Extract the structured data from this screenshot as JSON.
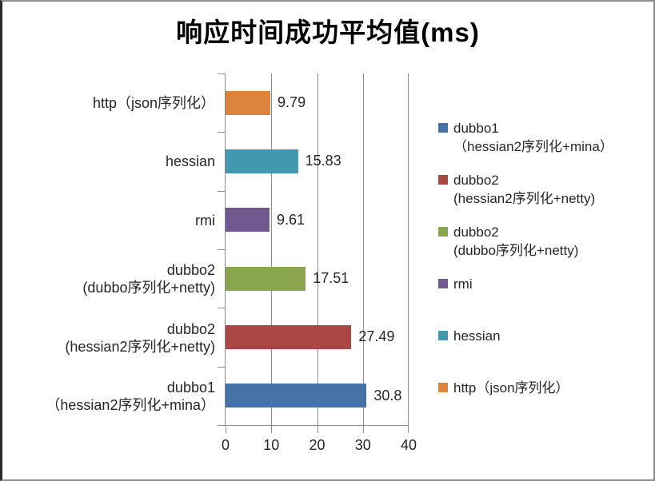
{
  "chart_data": {
    "type": "bar",
    "orientation": "horizontal",
    "title": "响应时间成功平均值(ms)",
    "xlabel": "",
    "ylabel": "",
    "xlim": [
      0,
      40
    ],
    "x_ticks": [
      "0",
      "10",
      "20",
      "30",
      "40"
    ],
    "grid": true,
    "legend_position": "right",
    "bars_top_to_bottom": [
      {
        "label_lines": [
          "http（json序列化）"
        ],
        "value": 9.79,
        "value_label": "9.79",
        "color": "#DB843D"
      },
      {
        "label_lines": [
          "hessian"
        ],
        "value": 15.83,
        "value_label": "15.83",
        "color": "#4198AF"
      },
      {
        "label_lines": [
          "rmi"
        ],
        "value": 9.61,
        "value_label": "9.61",
        "color": "#71588F"
      },
      {
        "label_lines": [
          "dubbo2",
          "(dubbo序列化+netty)"
        ],
        "value": 17.51,
        "value_label": "17.51",
        "color": "#89A54E"
      },
      {
        "label_lines": [
          "dubbo2",
          "(hessian2序列化+netty)"
        ],
        "value": 27.49,
        "value_label": "27.49",
        "color": "#AA4643"
      },
      {
        "label_lines": [
          "dubbo1",
          "（hessian2序列化+mina）"
        ],
        "value": 30.8,
        "value_label": "30.8",
        "color": "#4572A7"
      }
    ],
    "legend": [
      {
        "lines": [
          "dubbo1",
          "（hessian2序列化+mina）"
        ],
        "color": "#4572A7"
      },
      {
        "lines": [
          "dubbo2",
          "(hessian2序列化+netty)"
        ],
        "color": "#AA4643"
      },
      {
        "lines": [
          "dubbo2",
          "(dubbo序列化+netty)"
        ],
        "color": "#89A54E"
      },
      {
        "lines": [
          "rmi"
        ],
        "color": "#71588F"
      },
      {
        "lines": [
          "hessian"
        ],
        "color": "#4198AF"
      },
      {
        "lines": [
          "http（json序列化）"
        ],
        "color": "#DB843D"
      }
    ],
    "colors": {
      "grid": "#8C8C8C",
      "axis": "#8C8C8C",
      "text": "#262626",
      "title": "#000000"
    }
  }
}
